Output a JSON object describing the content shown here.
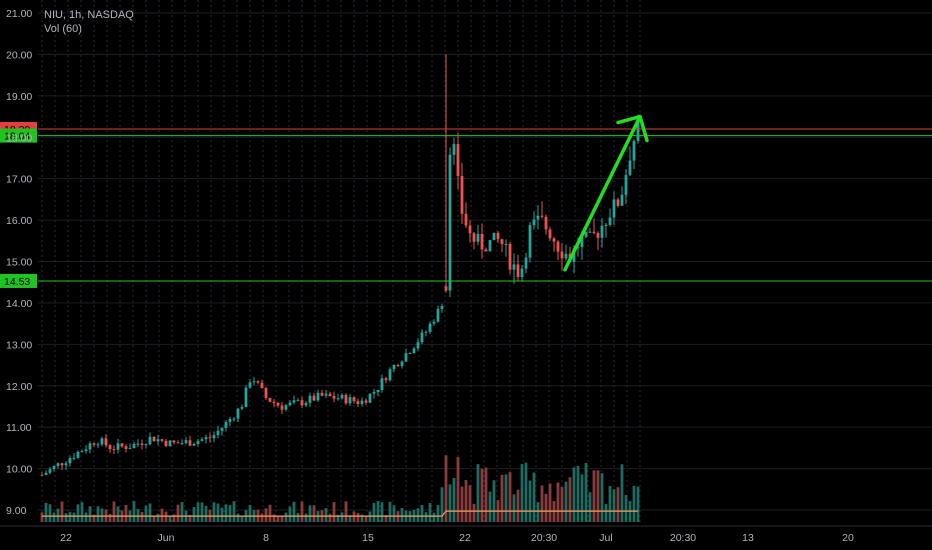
{
  "header": {
    "symbol_line": "NIU, 1h, NASDAQ",
    "indicator_line": "Vol (60)"
  },
  "colors": {
    "background": "#000000",
    "up": "#26a69a",
    "down": "#ef5350",
    "grid": "#2a2e39",
    "axis_text": "#b2b5be",
    "support_line": "#1fc41f",
    "resistance_line": "#e04040",
    "arrow": "#22dd22",
    "volume_ma": "#f0a060"
  },
  "chart_data": {
    "type": "candlestick",
    "title": "",
    "symbol": "NIU",
    "interval": "1h",
    "exchange": "NASDAQ",
    "indicator": "Vol (60)",
    "ylim": [
      8.7,
      21.2
    ],
    "y_ticks": [
      "21.00",
      "20.00",
      "19.00",
      "18.00",
      "17.00",
      "16.00",
      "15.00",
      "14.00",
      "13.00",
      "12.00",
      "11.00",
      "10.00",
      "9.00"
    ],
    "x_tick_labels": [
      "22",
      "Jun",
      "8",
      "15",
      "22",
      "20:30",
      "Jul",
      "20:30",
      "13",
      "20"
    ],
    "horizontal_lines": [
      {
        "price": 18.2,
        "label": "18.20",
        "style": "resistance"
      },
      {
        "price": 18.04,
        "label": "18.04",
        "style": "support"
      },
      {
        "price": 14.53,
        "label": "14.53",
        "style": "support"
      }
    ],
    "price_path": [
      [
        0,
        9.85
      ],
      [
        20,
        10.15
      ],
      [
        40,
        10.45
      ],
      [
        55,
        10.7
      ],
      [
        70,
        10.5
      ],
      [
        90,
        10.55
      ],
      [
        110,
        10.75
      ],
      [
        130,
        10.6
      ],
      [
        150,
        10.65
      ],
      [
        170,
        10.75
      ],
      [
        185,
        11.1
      ],
      [
        200,
        11.5
      ],
      [
        210,
        12.25
      ],
      [
        225,
        11.7
      ],
      [
        240,
        11.5
      ],
      [
        260,
        11.6
      ],
      [
        280,
        11.75
      ],
      [
        300,
        11.7
      ],
      [
        320,
        11.6
      ],
      [
        335,
        11.9
      ],
      [
        350,
        12.4
      ],
      [
        370,
        12.9
      ],
      [
        385,
        13.3
      ],
      [
        400,
        13.9
      ],
      [
        406,
        14.4
      ],
      [
        407,
        17.6
      ],
      [
        412,
        18.0
      ],
      [
        420,
        16.3
      ],
      [
        430,
        15.6
      ],
      [
        440,
        15.4
      ],
      [
        460,
        15.5
      ],
      [
        470,
        15.0
      ],
      [
        480,
        14.7
      ],
      [
        490,
        15.8
      ],
      [
        500,
        16.0
      ],
      [
        510,
        15.7
      ],
      [
        520,
        15.3
      ],
      [
        530,
        15.1
      ],
      [
        540,
        15.5
      ],
      [
        550,
        15.5
      ],
      [
        560,
        15.8
      ],
      [
        570,
        16.2
      ],
      [
        580,
        16.5
      ],
      [
        590,
        17.6
      ],
      [
        598,
        18.3
      ]
    ],
    "candle_count": 140,
    "volume_ma_level": 0.15,
    "arrow": {
      "from_price": 14.8,
      "to_price": 18.5,
      "color": "green"
    }
  }
}
